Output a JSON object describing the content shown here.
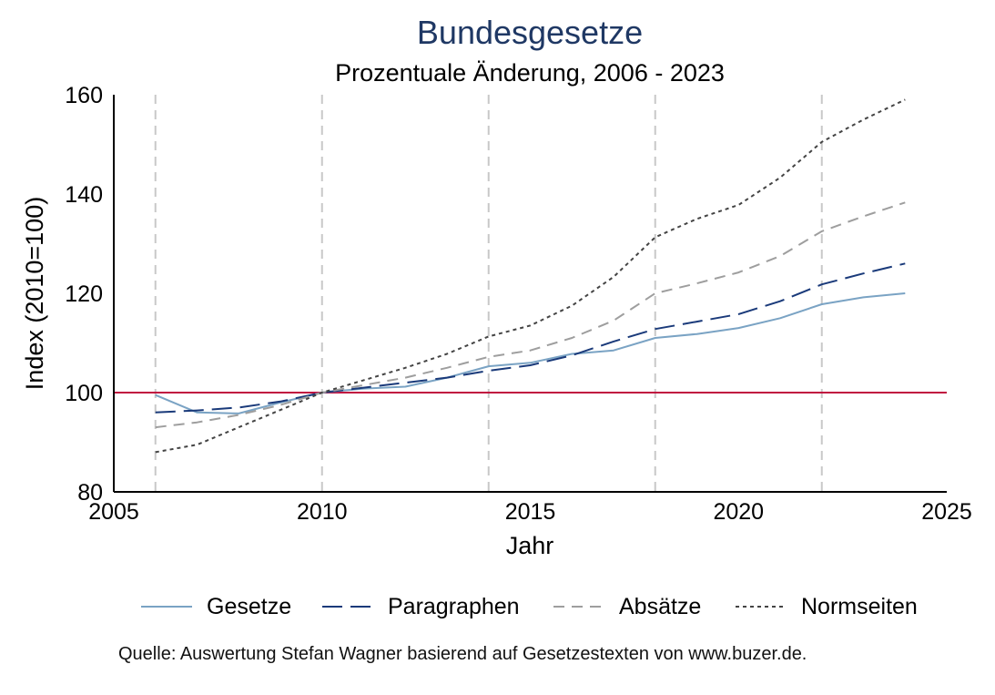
{
  "chart_data": {
    "type": "line",
    "title": "Bundesgesetze",
    "subtitle": "Prozentuale Änderung, 2006 - 2023",
    "xlabel": "Jahr",
    "ylabel": "Index (2010=100)",
    "xlim": [
      2005,
      2025
    ],
    "ylim": [
      80,
      160
    ],
    "x_ticks": [
      "2005",
      "2010",
      "2015",
      "2020",
      "2025"
    ],
    "y_ticks": [
      "80",
      "100",
      "120",
      "140",
      "160"
    ],
    "vertical_guides": [
      2006,
      2010,
      2014,
      2018,
      2022
    ],
    "reference_line": 100,
    "legend_position": "bottom",
    "x": [
      2006,
      2007,
      2008,
      2009,
      2010,
      2011,
      2012,
      2013,
      2014,
      2015,
      2016,
      2017,
      2018,
      2019,
      2020,
      2021,
      2022,
      2023,
      2024
    ],
    "series": [
      {
        "name": "Gesetze",
        "color": "#7aa3c4",
        "dash": "",
        "values": [
          99.5,
          96.0,
          95.8,
          98.0,
          100.0,
          100.8,
          101.2,
          103.0,
          105.3,
          106.0,
          107.8,
          108.5,
          111.0,
          111.8,
          113.0,
          115.0,
          117.8,
          119.2,
          120.0
        ]
      },
      {
        "name": "Paragraphen",
        "color": "#1a3a7a",
        "dash": "22 9",
        "values": [
          96.0,
          96.4,
          97.0,
          98.2,
          100.0,
          101.0,
          102.0,
          103.0,
          104.4,
          105.5,
          107.5,
          110.3,
          112.8,
          114.3,
          115.8,
          118.4,
          121.8,
          124.0,
          126.0
        ]
      },
      {
        "name": "Absätze",
        "color": "#9e9e9e",
        "dash": "12 8",
        "values": [
          93.0,
          94.0,
          95.5,
          97.5,
          100.0,
          101.5,
          103.0,
          105.0,
          107.2,
          108.5,
          111.0,
          114.5,
          120.0,
          122.0,
          124.2,
          127.5,
          132.5,
          135.5,
          138.3
        ]
      },
      {
        "name": "Normseiten",
        "color": "#444444",
        "dash": "4 4",
        "values": [
          88.0,
          89.5,
          93.0,
          96.5,
          100.0,
          102.5,
          105.0,
          107.8,
          111.3,
          113.5,
          117.5,
          123.3,
          131.3,
          135.0,
          137.8,
          143.3,
          150.5,
          155.0,
          159.0
        ]
      }
    ],
    "colors": {
      "title": "#1f3864",
      "reference": "#c0103f",
      "guides": "#c8c8c8",
      "axis": "#000000"
    }
  },
  "source_note": "Quelle: Auswertung Stefan Wagner basierend auf Gesetzestexten von www.buzer.de."
}
